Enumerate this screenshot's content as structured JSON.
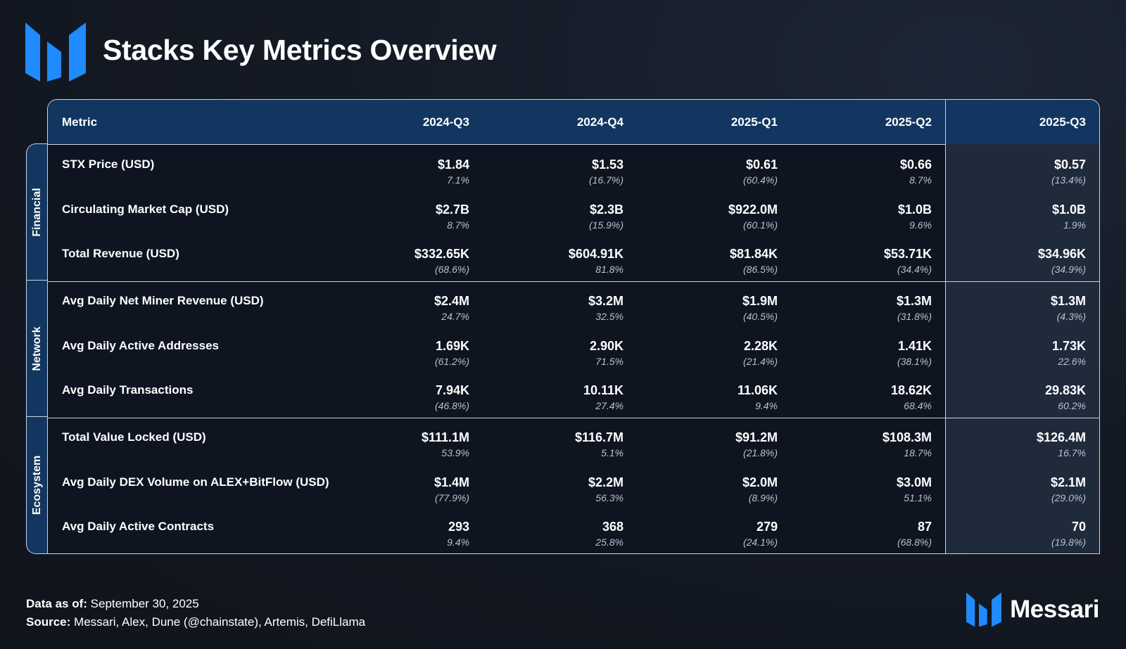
{
  "title": "Stacks Key Metrics Overview",
  "accent_color": "#1f8bff",
  "header": {
    "metric": "Metric",
    "periods": [
      "2024-Q3",
      "2024-Q4",
      "2025-Q1",
      "2025-Q2",
      "2025-Q3"
    ]
  },
  "groups": [
    {
      "label": "Financial",
      "rows": [
        {
          "metric": "STX Price (USD)",
          "values": [
            {
              "main": "$1.84",
              "pct": "7.1%"
            },
            {
              "main": "$1.53",
              "pct": "(16.7%)"
            },
            {
              "main": "$0.61",
              "pct": "(60.4%)"
            },
            {
              "main": "$0.66",
              "pct": "8.7%"
            },
            {
              "main": "$0.57",
              "pct": "(13.4%)"
            }
          ]
        },
        {
          "metric": "Circulating Market Cap (USD)",
          "values": [
            {
              "main": "$2.7B",
              "pct": "8.7%"
            },
            {
              "main": "$2.3B",
              "pct": "(15.9%)"
            },
            {
              "main": "$922.0M",
              "pct": "(60.1%)"
            },
            {
              "main": "$1.0B",
              "pct": "9.6%"
            },
            {
              "main": "$1.0B",
              "pct": "1.9%"
            }
          ]
        },
        {
          "metric": "Total Revenue (USD)",
          "values": [
            {
              "main": "$332.65K",
              "pct": "(68.6%)"
            },
            {
              "main": "$604.91K",
              "pct": "81.8%"
            },
            {
              "main": "$81.84K",
              "pct": "(86.5%)"
            },
            {
              "main": "$53.71K",
              "pct": "(34.4%)"
            },
            {
              "main": "$34.96K",
              "pct": "(34.9%)"
            }
          ]
        }
      ]
    },
    {
      "label": "Network",
      "rows": [
        {
          "metric": "Avg Daily Net Miner Revenue (USD)",
          "values": [
            {
              "main": "$2.4M",
              "pct": "24.7%"
            },
            {
              "main": "$3.2M",
              "pct": "32.5%"
            },
            {
              "main": "$1.9M",
              "pct": "(40.5%)"
            },
            {
              "main": "$1.3M",
              "pct": "(31.8%)"
            },
            {
              "main": "$1.3M",
              "pct": "(4.3%)"
            }
          ]
        },
        {
          "metric": "Avg Daily Active Addresses",
          "values": [
            {
              "main": "1.69K",
              "pct": "(61.2%)"
            },
            {
              "main": "2.90K",
              "pct": "71.5%"
            },
            {
              "main": "2.28K",
              "pct": "(21.4%)"
            },
            {
              "main": "1.41K",
              "pct": "(38.1%)"
            },
            {
              "main": "1.73K",
              "pct": "22.6%"
            }
          ]
        },
        {
          "metric": "Avg Daily Transactions",
          "values": [
            {
              "main": "7.94K",
              "pct": "(46.8%)"
            },
            {
              "main": "10.11K",
              "pct": "27.4%"
            },
            {
              "main": "11.06K",
              "pct": "9.4%"
            },
            {
              "main": "18.62K",
              "pct": "68.4%"
            },
            {
              "main": "29.83K",
              "pct": "60.2%"
            }
          ]
        }
      ]
    },
    {
      "label": "Ecosystem",
      "rows": [
        {
          "metric": "Total Value Locked (USD)",
          "values": [
            {
              "main": "$111.1M",
              "pct": "53.9%"
            },
            {
              "main": "$116.7M",
              "pct": "5.1%"
            },
            {
              "main": "$91.2M",
              "pct": "(21.8%)"
            },
            {
              "main": "$108.3M",
              "pct": "18.7%"
            },
            {
              "main": "$126.4M",
              "pct": "16.7%"
            }
          ]
        },
        {
          "metric": "Avg Daily DEX Volume on ALEX+BitFlow (USD)",
          "values": [
            {
              "main": "$1.4M",
              "pct": "(77.9%)"
            },
            {
              "main": "$2.2M",
              "pct": "56.3%"
            },
            {
              "main": "$2.0M",
              "pct": "(8.9%)"
            },
            {
              "main": "$3.0M",
              "pct": "51.1%"
            },
            {
              "main": "$2.1M",
              "pct": "(29.0%)"
            }
          ]
        },
        {
          "metric": "Avg Daily Active Contracts",
          "values": [
            {
              "main": "293",
              "pct": "9.4%"
            },
            {
              "main": "368",
              "pct": "25.8%"
            },
            {
              "main": "279",
              "pct": "(24.1%)"
            },
            {
              "main": "87",
              "pct": "(68.8%)"
            },
            {
              "main": "70",
              "pct": "(19.8%)"
            }
          ]
        }
      ]
    }
  ],
  "footer": {
    "data_as_of_label": "Data as of:",
    "data_as_of_value": "September 30, 2025",
    "source_label": "Source:",
    "source_value": "Messari, Alex, Dune (@chainstate), Artemis, DefiLlama"
  },
  "brand": {
    "name": "Messari"
  }
}
